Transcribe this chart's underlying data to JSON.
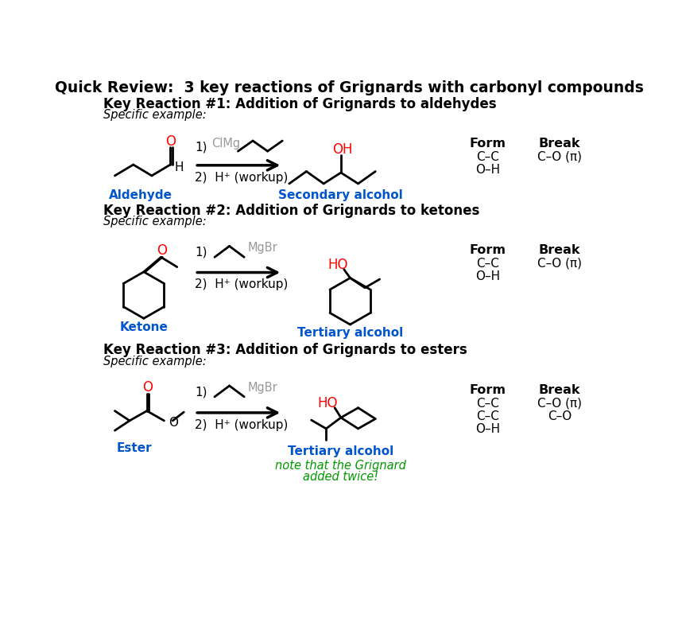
{
  "title": "Quick Review:  3 key reactions of Grignards with carbonyl compounds",
  "bg_color": "#ffffff",
  "reactions": [
    {
      "heading": "Key Reaction #1: Addition of Grignards to aldehydes",
      "specific": "Specific example:",
      "reagent_label": "Aldehyde",
      "product_label": "Secondary alcohol",
      "form": [
        "C–C",
        "O–H"
      ],
      "break_bonds": [
        "C–O (π)"
      ]
    },
    {
      "heading": "Key Reaction #2: Addition of Grignards to ketones",
      "specific": "Specific example:",
      "reagent_label": "Ketone",
      "product_label": "Tertiary alcohol",
      "form": [
        "C–C",
        "O–H"
      ],
      "break_bonds": [
        "C–O (π)"
      ]
    },
    {
      "heading": "Key Reaction #3: Addition of Grignards to esters",
      "specific": "Specific example:",
      "reagent_label": "Ester",
      "product_label": "Tertiary alcohol",
      "form": [
        "C–C",
        "C–C",
        "O–H"
      ],
      "break_bonds": [
        "C–O (π)",
        "C–O"
      ],
      "note_line1": "note that the Grignard",
      "note_line2": "added twice!"
    }
  ],
  "form_header": "Form",
  "break_header": "Break",
  "black": "#000000",
  "red": "#ff0000",
  "gray": "#999999",
  "blue": "#0055cc",
  "green": "#009900"
}
